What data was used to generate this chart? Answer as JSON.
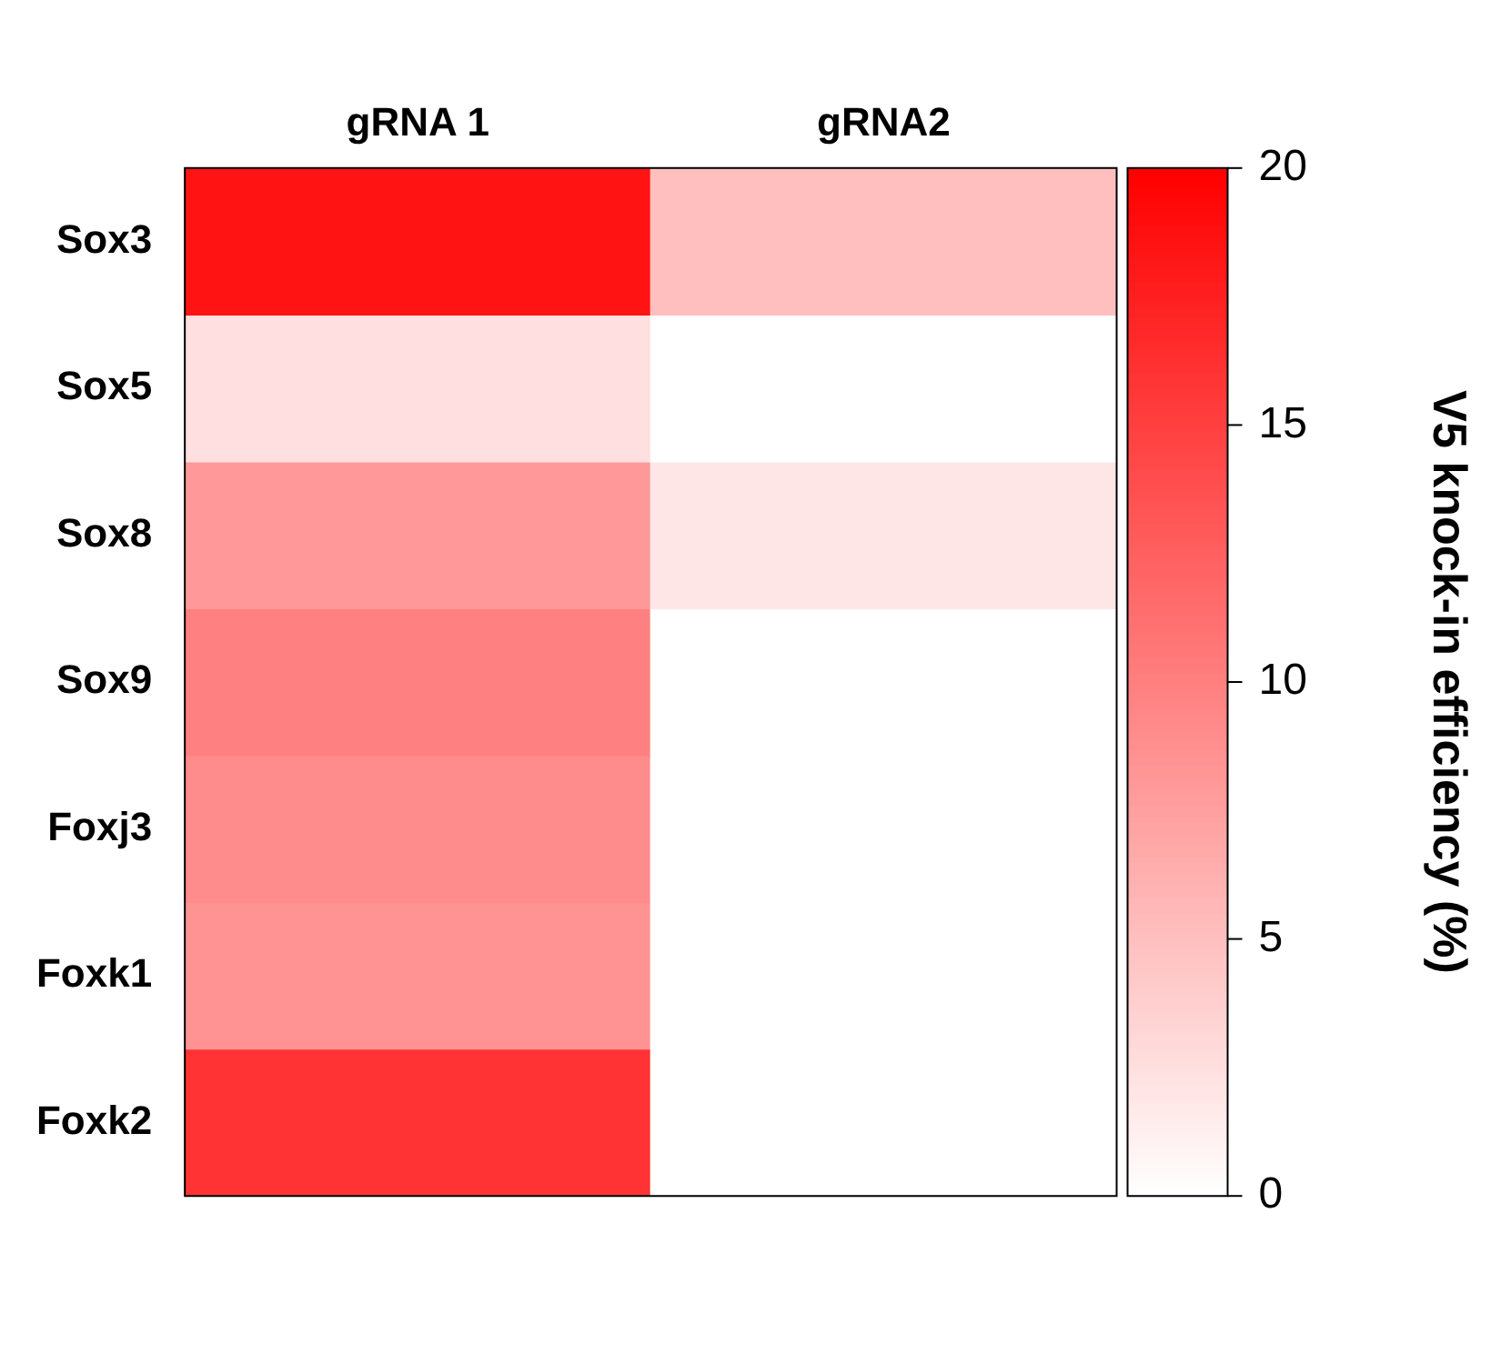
{
  "chart_data": {
    "type": "heatmap",
    "categories": [
      "gRNA 1",
      "gRNA2"
    ],
    "y_categories": [
      "Sox3",
      "Sox5",
      "Sox8",
      "Sox9",
      "Foxj3",
      "Foxk1",
      "Foxk2"
    ],
    "cells": [
      [
        18.5,
        5
      ],
      [
        2.5,
        0
      ],
      [
        8,
        2
      ],
      [
        10,
        0
      ],
      [
        9,
        0
      ],
      [
        8.5,
        0
      ],
      [
        16,
        0
      ]
    ],
    "clim": [
      0,
      20
    ],
    "cticks": [
      0,
      5,
      10,
      15,
      20
    ],
    "clabel": "V5 knock-in efficiency (%)"
  }
}
